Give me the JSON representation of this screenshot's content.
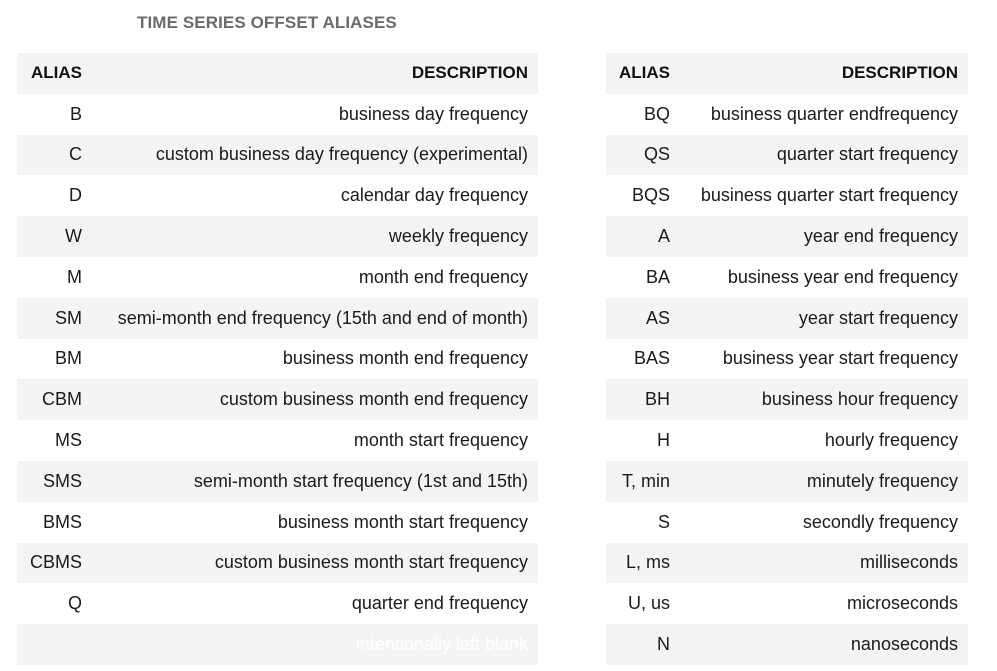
{
  "title": "TIME SERIES OFFSET ALIASES",
  "left_table": {
    "headers": {
      "alias": "ALIAS",
      "description": "DESCRIPTION"
    },
    "rows": [
      {
        "alias": "B",
        "description": "business day frequency"
      },
      {
        "alias": "C",
        "description": "custom business day frequency (experimental)"
      },
      {
        "alias": "D",
        "description": "calendar day frequency"
      },
      {
        "alias": "W",
        "description": "weekly frequency"
      },
      {
        "alias": "M",
        "description": "month end frequency"
      },
      {
        "alias": "SM",
        "description": "semi-month end frequency (15th and end of month)"
      },
      {
        "alias": "BM",
        "description": "business month end frequency"
      },
      {
        "alias": "CBM",
        "description": "custom business month end frequency"
      },
      {
        "alias": "MS",
        "description": "month start frequency"
      },
      {
        "alias": "SMS",
        "description": "semi-month start frequency (1st and 15th)"
      },
      {
        "alias": "BMS",
        "description": "business month start frequency"
      },
      {
        "alias": "CBMS",
        "description": "custom business month start frequency"
      },
      {
        "alias": "Q",
        "description": "quarter end frequency"
      },
      {
        "alias": "",
        "description": "intentionally left blank"
      }
    ]
  },
  "right_table": {
    "headers": {
      "alias": "ALIAS",
      "description": "DESCRIPTION"
    },
    "rows": [
      {
        "alias": "BQ",
        "description": "business quarter endfrequency"
      },
      {
        "alias": "QS",
        "description": "quarter start frequency"
      },
      {
        "alias": "BQS",
        "description": "business quarter start frequency"
      },
      {
        "alias": "A",
        "description": "year end frequency"
      },
      {
        "alias": "BA",
        "description": "business year end frequency"
      },
      {
        "alias": "AS",
        "description": "year start frequency"
      },
      {
        "alias": "BAS",
        "description": "business year start frequency"
      },
      {
        "alias": "BH",
        "description": "business hour frequency"
      },
      {
        "alias": "H",
        "description": "hourly frequency"
      },
      {
        "alias": "T, min",
        "description": "minutely frequency"
      },
      {
        "alias": "S",
        "description": "secondly frequency"
      },
      {
        "alias": "L, ms",
        "description": "milliseconds"
      },
      {
        "alias": "U, us",
        "description": "microseconds"
      },
      {
        "alias": "N",
        "description": "nanoseconds"
      }
    ]
  }
}
